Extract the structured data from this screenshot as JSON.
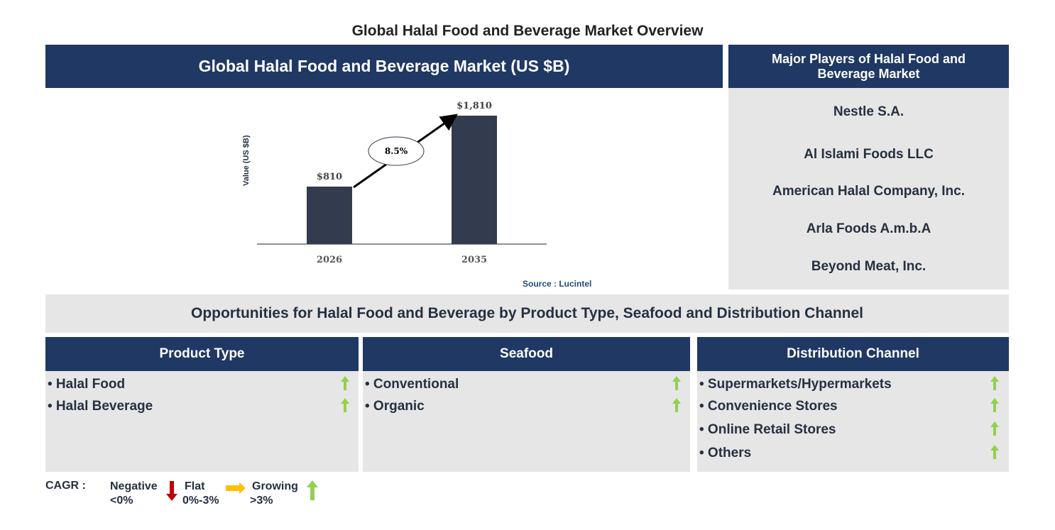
{
  "title": "Global Halal Food and Beverage Market Overview",
  "market_header": "Global Halal Food and Beverage Market (US $B)",
  "players_header": "Major Players of Halal Food and Beverage Market",
  "players": [
    "Nestle S.A.",
    "Al Islami Foods LLC",
    "American Halal Company, Inc.",
    "Arla Foods A.m.b.A",
    "Beyond Meat, Inc."
  ],
  "source": "Source : Lucintel",
  "opportunities_header": "Opportunities for Halal Food and Beverage by Product Type, Seafood and Distribution Channel",
  "segments": [
    {
      "title": "Product Type",
      "items": [
        {
          "label": "• Halal Food",
          "trend": "growing"
        },
        {
          "label": "• Halal Beverage",
          "trend": "growing"
        }
      ]
    },
    {
      "title": "Seafood",
      "items": [
        {
          "label": "• Conventional",
          "trend": "growing"
        },
        {
          "label": "• Organic",
          "trend": "growing"
        }
      ]
    },
    {
      "title": "Distribution Channel",
      "items": [
        {
          "label": "• Supermarkets/Hypermarkets",
          "trend": "growing"
        },
        {
          "label": "• Convenience Stores",
          "trend": "growing"
        },
        {
          "label": "• Online Retail Stores",
          "trend": "growing"
        },
        {
          "label": "• Others",
          "trend": "growing"
        }
      ]
    }
  ],
  "legend": {
    "cagr": "CAGR :",
    "negative": "Negative",
    "negative_range": "<0%",
    "flat": "Flat",
    "flat_range": "0%-3%",
    "growing": "Growing",
    "growing_range": ">3%"
  },
  "colors": {
    "navy": "#1f3864",
    "bar": "#323c4e",
    "grey": "#e6e6e6",
    "up": "#92d050",
    "down": "#c00000",
    "flat": "#ffc000"
  },
  "chart_data": {
    "type": "bar",
    "categories": [
      "2026",
      "2035"
    ],
    "values": [
      810,
      1810
    ],
    "value_labels": [
      "$810",
      "$1,810"
    ],
    "ylabel": "Value (US $B)",
    "cagr_label": "8.5%",
    "grid": false
  }
}
